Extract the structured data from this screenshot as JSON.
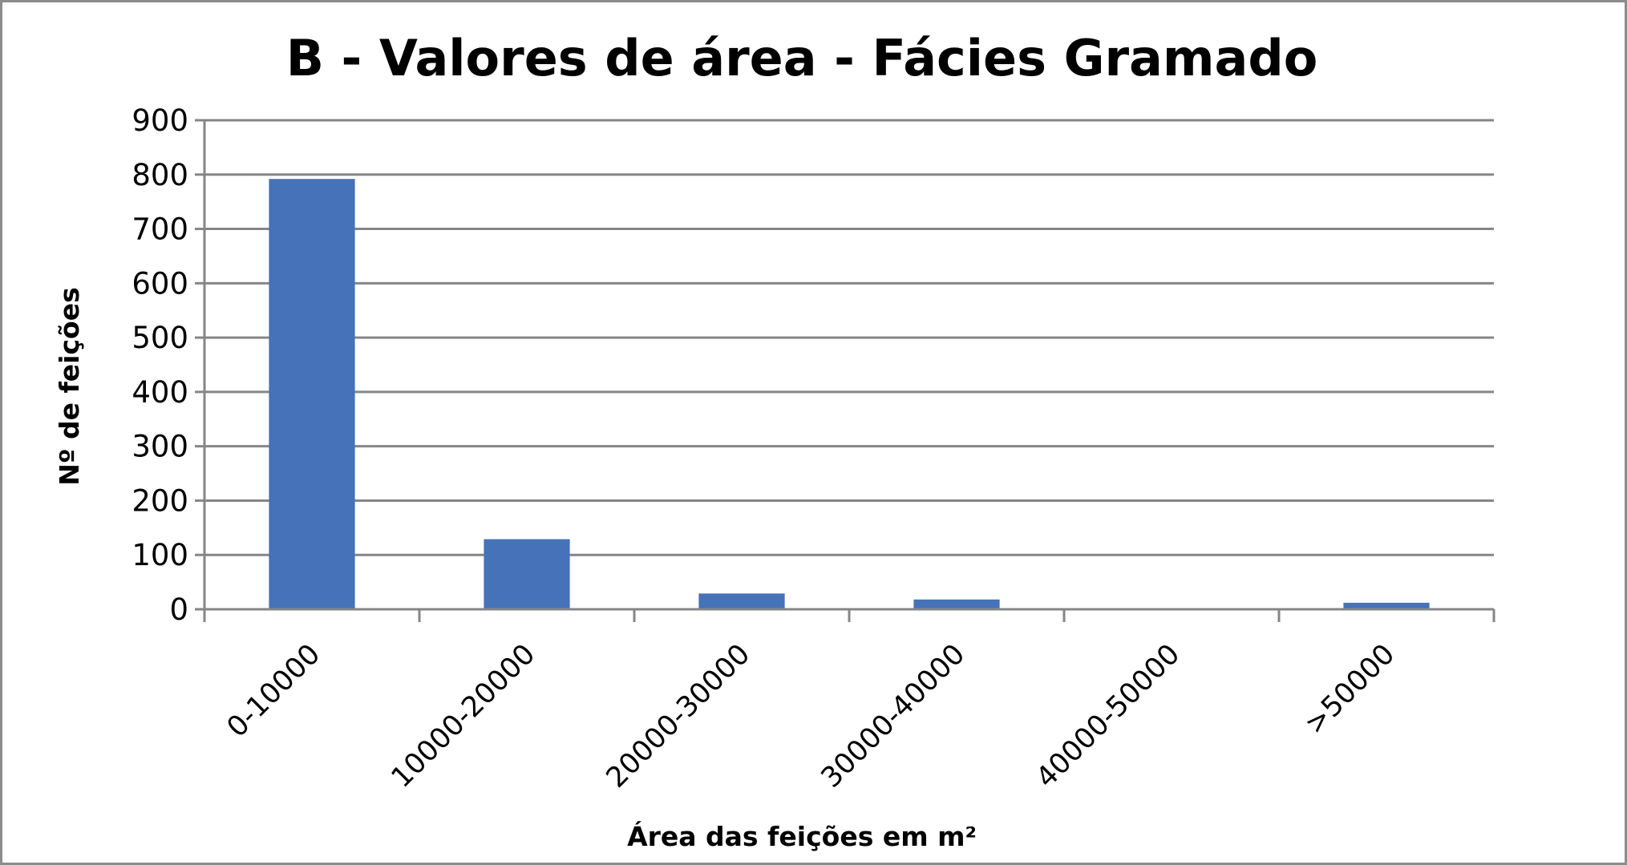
{
  "chart_data": {
    "type": "bar",
    "title": "B - Valores de área - Fácies Gramado",
    "xlabel": "Área das feições em m²",
    "ylabel": "Nº de feições",
    "categories": [
      "0-10000",
      "10000-20000",
      "20000-30000",
      "30000-40000",
      "40000-50000",
      ">50000"
    ],
    "values": [
      792,
      129,
      29,
      18,
      0,
      12
    ],
    "ylim": [
      0,
      900
    ],
    "yticks": [
      "0",
      "100",
      "200",
      "300",
      "400",
      "500",
      "600",
      "700",
      "800",
      "900"
    ],
    "grid": true,
    "legend": "none",
    "bar_color": "#4572b8"
  }
}
